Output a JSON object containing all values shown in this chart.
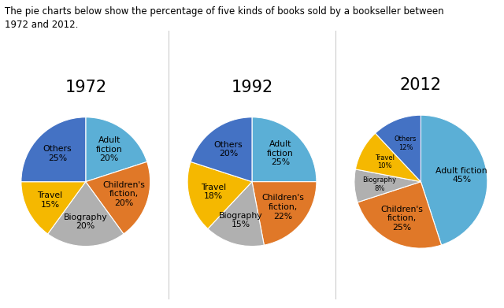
{
  "title": "The pie charts below show the percentage of five kinds of books sold by a bookseller between\n1972 and 2012.",
  "charts": [
    {
      "year": "1972",
      "labels": [
        "Adult\nfiction\n20%",
        "Children's\nfiction,\n20%",
        "Biography\n20%",
        "Travel\n15%",
        "Others\n25%"
      ],
      "values": [
        20,
        20,
        20,
        15,
        25
      ],
      "colors": [
        "#5bafd6",
        "#e07828",
        "#b0b0b0",
        "#f5b800",
        "#4472c4"
      ]
    },
    {
      "year": "1992",
      "labels": [
        "Adult\nfiction\n25%",
        "Children's\nfiction,\n22%",
        "Biography\n15%",
        "Travel\n18%",
        "Others\n20%"
      ],
      "values": [
        25,
        22,
        15,
        18,
        20
      ],
      "colors": [
        "#5bafd6",
        "#e07828",
        "#b0b0b0",
        "#f5b800",
        "#4472c4"
      ]
    },
    {
      "year": "2012",
      "labels": [
        "Adult fiction\n45%",
        "Children's\nfiction,\n25%",
        "Biography\n8%",
        "Travel\n10%",
        "Others\n12%"
      ],
      "values": [
        45,
        25,
        8,
        10,
        12
      ],
      "colors": [
        "#5bafd6",
        "#e07828",
        "#b0b0b0",
        "#f5b800",
        "#4472c4"
      ]
    }
  ],
  "bg_color": "#ffffff",
  "title_fontsize": 8.5,
  "year_fontsize": 15,
  "label_fontsize": 7.8,
  "label_fontsize_small": 6.8
}
